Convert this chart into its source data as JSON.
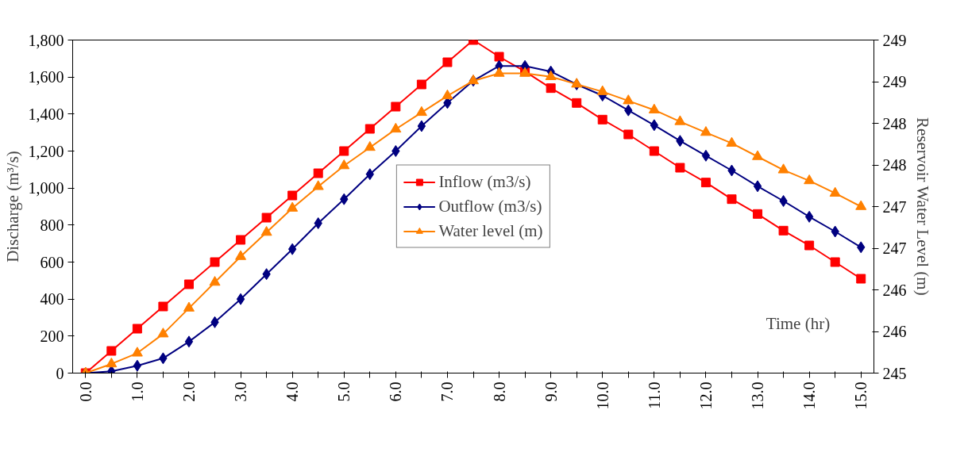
{
  "chart_data": {
    "type": "line",
    "xlabel": "Time (hr)",
    "ylabel": "Discharge (m³/s)",
    "y2label": "Reservoir Water Level (m)",
    "categories": [
      "0.0",
      null,
      "1.0",
      null,
      "2.0",
      null,
      "3.0",
      null,
      "4.0",
      null,
      "5.0",
      null,
      "6.0",
      null,
      "7.0",
      null,
      "8.0",
      null,
      "9.0",
      null,
      "10.0",
      null,
      "11.0",
      null,
      "12.0",
      null,
      "13.0",
      null,
      "14.0",
      null,
      "15.0"
    ],
    "series": [
      {
        "name": "Inflow (m3/s)",
        "color": "#ff0000",
        "marker": "square",
        "values": [
          0,
          120,
          240,
          360,
          480,
          600,
          720,
          840,
          960,
          1080,
          1200,
          1320,
          1440,
          1560,
          1680,
          1800,
          1710,
          1630,
          1540,
          1460,
          1370,
          1290,
          1200,
          1110,
          1030,
          940,
          860,
          770,
          690,
          600,
          510
        ]
      },
      {
        "name": "Outflow (m3/s)",
        "color": "#000080",
        "marker": "diamond",
        "values": [
          0,
          10,
          40,
          80,
          170,
          275,
          400,
          535,
          670,
          810,
          940,
          1075,
          1200,
          1335,
          1460,
          1580,
          1660,
          1660,
          1630,
          1560,
          1500,
          1420,
          1340,
          1255,
          1175,
          1095,
          1010,
          930,
          845,
          765,
          680
        ]
      },
      {
        "name": "Water level (m)",
        "color": "#ff8000",
        "marker": "triangle",
        "axis": "y2",
        "values": [
          245.0,
          245.11,
          245.24,
          245.47,
          245.78,
          246.09,
          246.4,
          246.69,
          246.98,
          247.24,
          247.49,
          247.71,
          247.93,
          248.13,
          248.33,
          248.51,
          248.6,
          248.6,
          248.56,
          248.47,
          248.38,
          248.27,
          248.16,
          248.02,
          247.89,
          247.76,
          247.6,
          247.44,
          247.31,
          247.16,
          247.0
        ]
      }
    ],
    "ylim": [
      0,
      1800
    ],
    "yticks": [
      {
        "value": 0,
        "label": "0"
      },
      {
        "value": 200,
        "label": "200"
      },
      {
        "value": 400,
        "label": "400"
      },
      {
        "value": 600,
        "label": "600"
      },
      {
        "value": 800,
        "label": "800"
      },
      {
        "value": 1000,
        "label": "1,000"
      },
      {
        "value": 1200,
        "label": "1,200"
      },
      {
        "value": 1400,
        "label": "1,400"
      },
      {
        "value": 1600,
        "label": "1,600"
      },
      {
        "value": 1800,
        "label": "1,800"
      }
    ],
    "y2lim": [
      245,
      249
    ],
    "y2ticks": [
      245,
      {
        "value": 245.5,
        "label": "246"
      },
      246,
      {
        "value": 246.5,
        "label": "247"
      },
      247,
      {
        "value": 247.5,
        "label": "248"
      },
      248,
      {
        "value": 248.5,
        "label": "249"
      },
      249
    ],
    "legend": "center",
    "grid": false,
    "line_style": "solid"
  }
}
